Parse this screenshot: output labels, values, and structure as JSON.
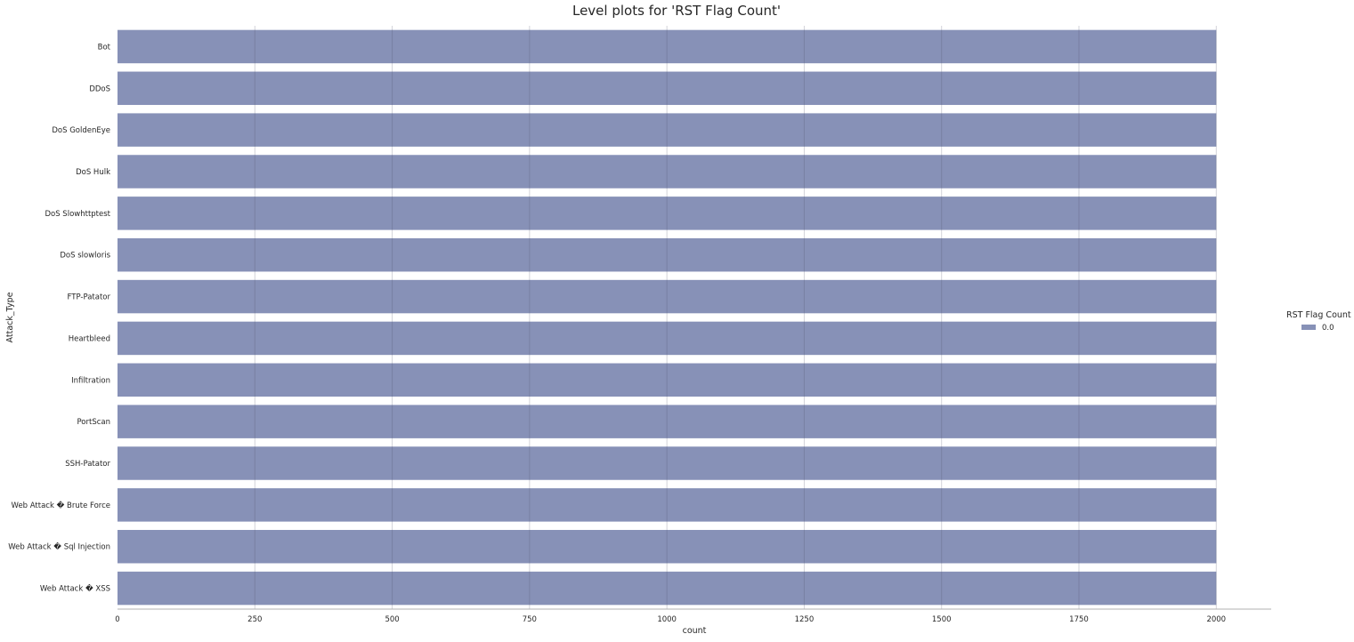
{
  "chart_data": {
    "type": "bar",
    "orientation": "horizontal",
    "title": "Level plots for 'RST Flag Count'",
    "xlabel": "count",
    "ylabel": "Attack_Type",
    "xlim": [
      0,
      2100
    ],
    "xticks": [
      0,
      250,
      500,
      750,
      1000,
      1250,
      1500,
      1750,
      2000
    ],
    "categories": [
      "Bot",
      "DDoS",
      "DoS GoldenEye",
      "DoS Hulk",
      "DoS Slowhttptest",
      "DoS slowloris",
      "FTP-Patator",
      "Heartbleed",
      "Infiltration",
      "PortScan",
      "SSH-Patator",
      "Web Attack � Brute Force",
      "Web Attack � Sql Injection",
      "Web Attack � XSS"
    ],
    "series": [
      {
        "name": "0.0",
        "color": "#8791b7",
        "values": [
          2000,
          2000,
          2000,
          2000,
          2000,
          2000,
          2000,
          2000,
          2000,
          2000,
          2000,
          2000,
          2000,
          2000
        ]
      }
    ],
    "grid": "vertical",
    "legend": {
      "title": "RST Flag Count",
      "placement": "right",
      "entries": [
        "0.0"
      ]
    }
  }
}
